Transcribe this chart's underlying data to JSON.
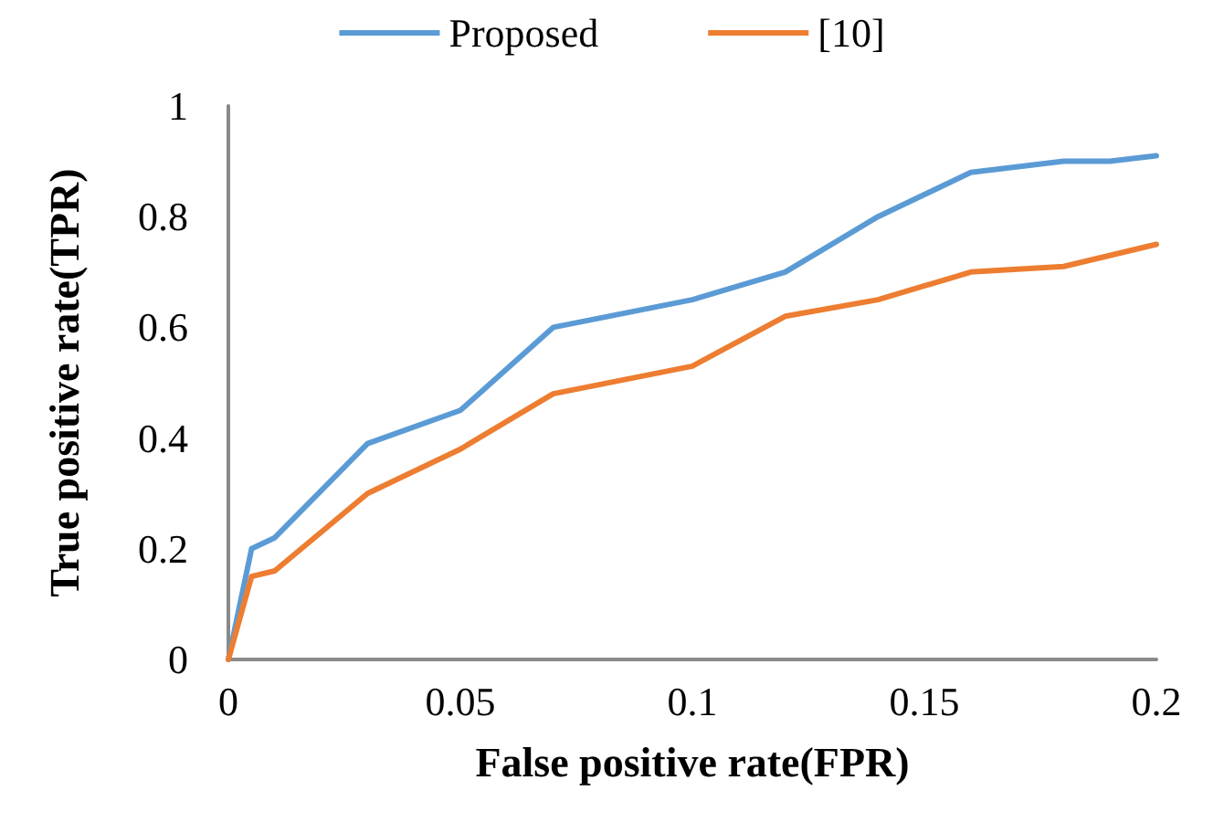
{
  "chart_data": {
    "type": "line",
    "xlabel": "False positive rate(FPR)",
    "ylabel": "True positive rate(TPR)",
    "series": [
      {
        "name": "Proposed",
        "color": "#5b9bd5",
        "x": [
          0,
          0.005,
          0.01,
          0.03,
          0.05,
          0.07,
          0.1,
          0.12,
          0.14,
          0.16,
          0.18,
          0.19,
          0.2
        ],
        "values": [
          0,
          0.2,
          0.22,
          0.39,
          0.45,
          0.6,
          0.65,
          0.7,
          0.8,
          0.88,
          0.9,
          0.9,
          0.91
        ]
      },
      {
        "name": "[10]",
        "color": "#ed7d31",
        "x": [
          0,
          0.005,
          0.01,
          0.03,
          0.05,
          0.07,
          0.1,
          0.12,
          0.14,
          0.16,
          0.18,
          0.2
        ],
        "values": [
          0,
          0.15,
          0.16,
          0.3,
          0.38,
          0.48,
          0.53,
          0.62,
          0.65,
          0.7,
          0.71,
          0.75
        ]
      }
    ],
    "xlim": [
      0,
      0.2
    ],
    "xticks": [
      0,
      0.05,
      0.1,
      0.15,
      0.2
    ],
    "ylim": [
      0,
      1
    ],
    "yticks": [
      0,
      0.2,
      0.4,
      0.6,
      0.8,
      1
    ],
    "grid": false,
    "legend": "top",
    "marker": "none",
    "line_style": "solid"
  }
}
